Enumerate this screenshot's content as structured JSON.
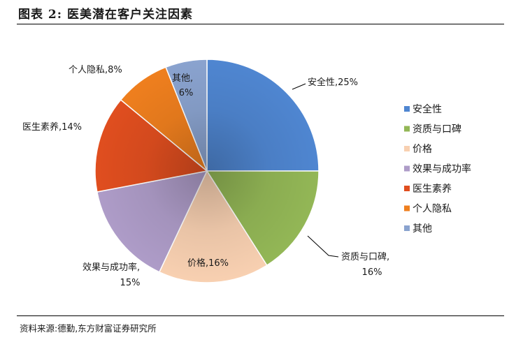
{
  "figure_title": "图表 2:  医美潜在客户关注因素",
  "source_note": "资料来源:德勤,东方财富证券研究所",
  "chart_data": {
    "type": "pie",
    "title": "",
    "legend_position": "right",
    "slices": [
      {
        "name": "安全性",
        "value": 25,
        "color": "#4f86d1",
        "label_line1": "安全性,25%",
        "label_line2": ""
      },
      {
        "name": "资质与口碑",
        "value": 16,
        "color": "#93b756",
        "label_line1": "资质与口碑,",
        "label_line2": "16%"
      },
      {
        "name": "价格",
        "value": 16,
        "color": "#f8d0b1",
        "label_line1": "价格,16%",
        "label_line2": ""
      },
      {
        "name": "效果与成功率",
        "value": 15,
        "color": "#ae9cc8",
        "label_line1": "效果与成功率,",
        "label_line2": "15%"
      },
      {
        "name": "医生素养",
        "value": 14,
        "color": "#e04e1f",
        "label_line1": "医生素养,14%",
        "label_line2": ""
      },
      {
        "name": "个人隐私",
        "value": 8,
        "color": "#ef7f1e",
        "label_line1": "个人隐私,8%",
        "label_line2": ""
      },
      {
        "name": "其他",
        "value": 6,
        "color": "#8aa3cf",
        "label_line1": "其他,",
        "label_line2": "6%"
      }
    ]
  }
}
